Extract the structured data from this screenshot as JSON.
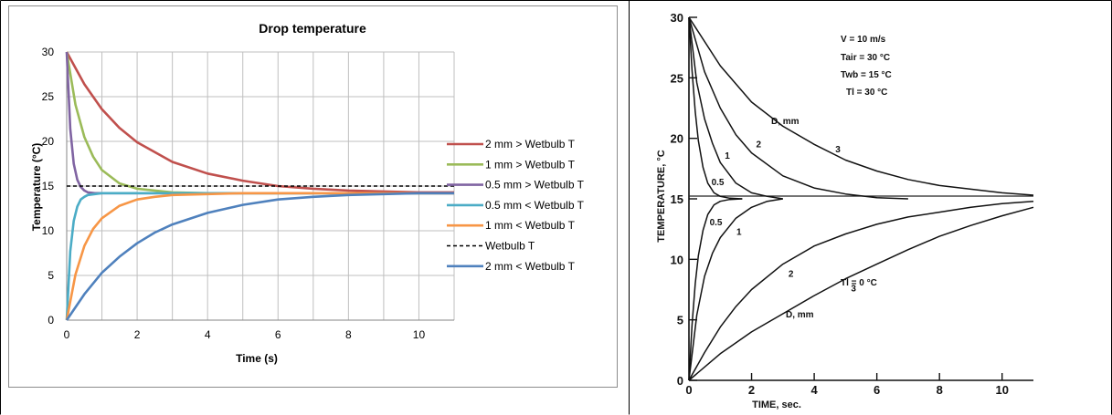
{
  "chart_data": [
    {
      "type": "line",
      "title": "Drop temperature",
      "xlabel": "Time (s)",
      "ylabel": "Temperature (°C)",
      "xlim": [
        0,
        11
      ],
      "ylim": [
        0,
        30
      ],
      "x_ticks": [
        "0",
        "2",
        "4",
        "6",
        "8",
        "10"
      ],
      "y_ticks": [
        "0",
        "5",
        "10",
        "15",
        "20",
        "25",
        "30"
      ],
      "grid": true,
      "legend_position": "right",
      "series": [
        {
          "name": "2 mm > Wetbulb T",
          "color": "#c0504d",
          "dash": false,
          "x": [
            0,
            0.5,
            1,
            1.5,
            2,
            3,
            4,
            5,
            6,
            7,
            8,
            9,
            10,
            11
          ],
          "y": [
            30,
            26.4,
            23.6,
            21.5,
            19.9,
            17.7,
            16.4,
            15.6,
            15.0,
            14.7,
            14.5,
            14.4,
            14.3,
            14.3
          ]
        },
        {
          "name": "1 mm > Wetbulb T",
          "color": "#9bbb59",
          "dash": false,
          "x": [
            0,
            0.25,
            0.5,
            0.75,
            1,
            1.5,
            2,
            3,
            4,
            6,
            8,
            11
          ],
          "y": [
            30,
            24.1,
            20.5,
            18.3,
            16.8,
            15.3,
            14.7,
            14.3,
            14.2,
            14.2,
            14.2,
            14.2
          ]
        },
        {
          "name": "0.5 mm > Wetbulb T",
          "color": "#8064a2",
          "dash": false,
          "x": [
            0,
            0.1,
            0.2,
            0.3,
            0.4,
            0.5,
            0.6,
            0.8,
            1,
            2,
            4,
            11
          ],
          "y": [
            30,
            21.4,
            17.5,
            15.7,
            14.9,
            14.5,
            14.3,
            14.2,
            14.2,
            14.2,
            14.2,
            14.2
          ]
        },
        {
          "name": "0.5 mm < Wetbulb T",
          "color": "#4bacc6",
          "dash": false,
          "x": [
            0,
            0.1,
            0.2,
            0.3,
            0.4,
            0.5,
            0.6,
            0.8,
            1,
            2,
            4,
            11
          ],
          "y": [
            0,
            7.7,
            11.1,
            12.7,
            13.5,
            13.8,
            14.0,
            14.1,
            14.2,
            14.2,
            14.2,
            14.2
          ]
        },
        {
          "name": "1 mm < Wetbulb T",
          "color": "#f79646",
          "dash": false,
          "x": [
            0,
            0.25,
            0.5,
            0.75,
            1,
            1.5,
            2,
            2.5,
            3,
            4,
            5,
            6,
            8,
            11
          ],
          "y": [
            0,
            5.1,
            8.3,
            10.2,
            11.4,
            12.8,
            13.5,
            13.8,
            14.0,
            14.1,
            14.2,
            14.2,
            14.2,
            14.2
          ]
        },
        {
          "name": "Wetbulb T",
          "color": "#000000",
          "dash": true,
          "x": [
            0,
            11
          ],
          "y": [
            15,
            15
          ]
        },
        {
          "name": "2 mm < Wetbulb T",
          "color": "#4f81bd",
          "dash": false,
          "x": [
            0,
            0.5,
            1,
            1.5,
            2,
            2.5,
            3,
            4,
            5,
            6,
            7,
            8,
            9,
            10,
            11
          ],
          "y": [
            0,
            2.9,
            5.3,
            7.1,
            8.6,
            9.8,
            10.7,
            12.0,
            12.9,
            13.5,
            13.8,
            14.0,
            14.1,
            14.2,
            14.2
          ]
        }
      ]
    },
    {
      "type": "line",
      "title": "",
      "xlabel": "TIME, sec.",
      "ylabel": "TEMPERATURE, °C",
      "xlim": [
        0,
        11
      ],
      "ylim": [
        0,
        30
      ],
      "x_ticks": [
        "0",
        "2",
        "4",
        "6",
        "8",
        "10"
      ],
      "y_ticks": [
        "0",
        "5",
        "10",
        "15",
        "20",
        "25",
        "30"
      ],
      "grid": false,
      "annotations_top": [
        "V = 10 m/s",
        "Tair = 30 °C",
        "Twb = 15 °C",
        "Tl = 30 °C"
      ],
      "annotation_bottom": "Tl = 0 °C",
      "dlabel": "D, mm",
      "series": [
        {
          "name": "3",
          "group": "cooling",
          "label": "3",
          "x": [
            0,
            1,
            2,
            3,
            4,
            5,
            6,
            7,
            8,
            9,
            10,
            11
          ],
          "y": [
            30,
            26.0,
            23.0,
            21.0,
            19.5,
            18.2,
            17.3,
            16.6,
            16.1,
            15.8,
            15.5,
            15.3
          ]
        },
        {
          "name": "2",
          "group": "cooling",
          "label": "2",
          "x": [
            0,
            0.5,
            1,
            1.5,
            2,
            3,
            4,
            5,
            6,
            7
          ],
          "y": [
            30,
            25.5,
            22.5,
            20.3,
            18.8,
            16.9,
            15.9,
            15.4,
            15.1,
            15.0
          ]
        },
        {
          "name": "1",
          "group": "cooling",
          "label": "1",
          "x": [
            0,
            0.25,
            0.5,
            0.75,
            1,
            1.5,
            2,
            2.5,
            3
          ],
          "y": [
            30,
            24.6,
            21.6,
            19.6,
            18.0,
            16.3,
            15.5,
            15.2,
            15.0
          ]
        },
        {
          "name": "0.5",
          "group": "cooling",
          "label": "0.5",
          "x": [
            0,
            0.1,
            0.2,
            0.3,
            0.45,
            0.6,
            0.8,
            1.0,
            1.3,
            1.7
          ],
          "y": [
            30,
            25.6,
            22.2,
            19.8,
            17.6,
            16.3,
            15.5,
            15.2,
            15.05,
            15.0
          ]
        },
        {
          "name": "0.5",
          "group": "heating",
          "label": "0.5",
          "x": [
            0,
            0.1,
            0.2,
            0.3,
            0.45,
            0.6,
            0.8,
            1.0,
            1.3,
            1.7
          ],
          "y": [
            0,
            4.6,
            8.0,
            10.3,
            12.4,
            13.7,
            14.5,
            14.8,
            14.95,
            15.0
          ]
        },
        {
          "name": "1",
          "group": "heating",
          "label": "1",
          "x": [
            0,
            0.25,
            0.5,
            0.75,
            1,
            1.5,
            2,
            2.5,
            3
          ],
          "y": [
            0,
            5.4,
            8.6,
            10.5,
            11.8,
            13.4,
            14.3,
            14.8,
            15.0
          ]
        },
        {
          "name": "2",
          "group": "heating",
          "label": "2",
          "x": [
            0,
            0.5,
            1,
            1.5,
            2,
            3,
            4,
            5,
            6,
            7,
            8,
            9,
            10,
            11
          ],
          "y": [
            0,
            2.3,
            4.4,
            6.1,
            7.5,
            9.6,
            11.1,
            12.1,
            12.9,
            13.5,
            13.9,
            14.3,
            14.6,
            14.8
          ]
        },
        {
          "name": "3",
          "group": "heating",
          "label": "3",
          "x": [
            0,
            1,
            2,
            3,
            4,
            5,
            6,
            7,
            8,
            9,
            10,
            11
          ],
          "y": [
            0,
            2.2,
            4.0,
            5.5,
            7.0,
            8.4,
            9.6,
            10.8,
            11.9,
            12.8,
            13.6,
            14.3
          ]
        }
      ]
    }
  ]
}
